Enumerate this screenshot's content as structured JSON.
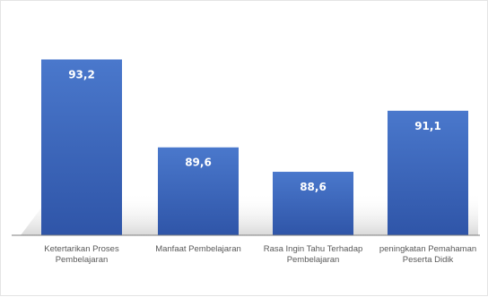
{
  "chart_data": {
    "type": "bar",
    "title": "",
    "xlabel": "",
    "ylabel": "",
    "categories": [
      "Ketertarikan Proses Pembelajaran",
      "Manfaat Pembelajaran",
      "Rasa Ingin Tahu Terhadap Pembelajaran",
      "peningkatan Pemahaman Peserta Didik"
    ],
    "values": [
      93.2,
      89.6,
      88.6,
      91.1
    ],
    "value_labels": [
      "93,2",
      "89,6",
      "88,6",
      "91,1"
    ],
    "ylim": [
      86.0,
      93.95
    ],
    "grid": false,
    "legend": "none",
    "colors": {
      "bar_top": "#4a78cc",
      "bar_bottom": "#2f55a8",
      "axis": "#7f7f7f",
      "floor": "#d9d9d9"
    }
  }
}
